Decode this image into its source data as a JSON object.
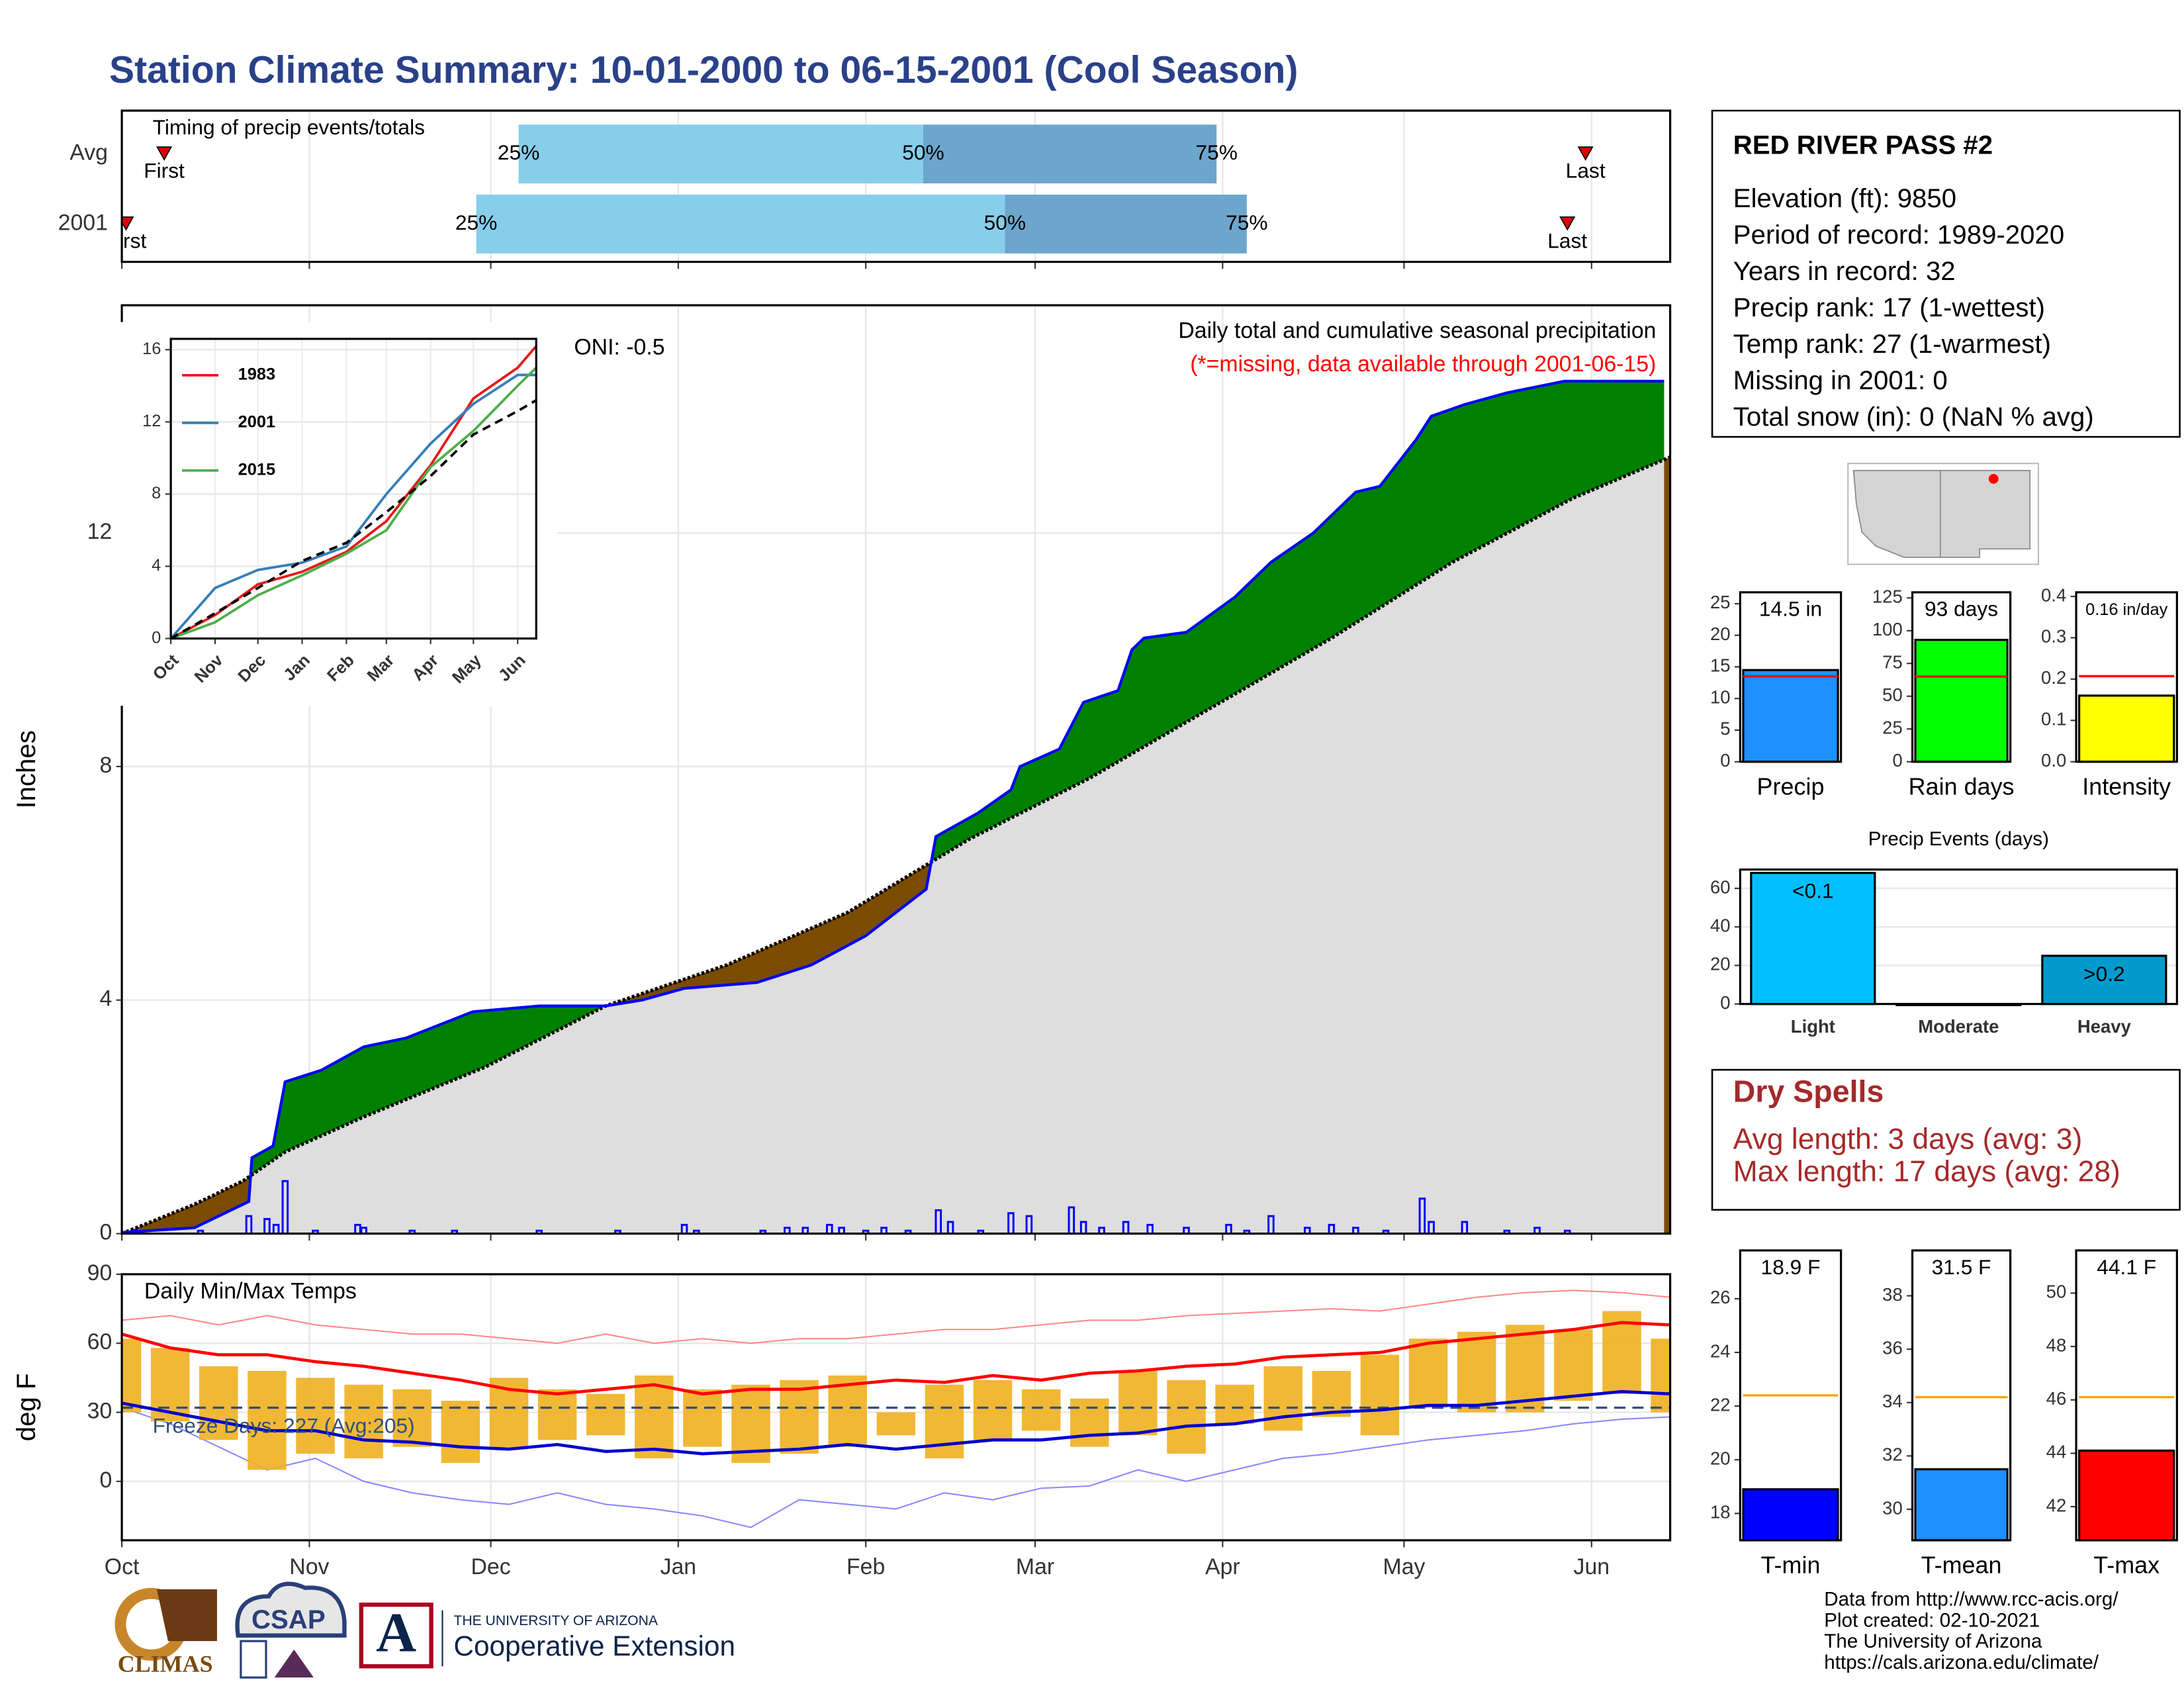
{
  "title": "Station Climate Summary: 10-01-2000 to 06-15-2001 (Cool Season)",
  "chart_data": [
    {
      "type": "timeline",
      "title": "Timing of precip events/totals",
      "categories": [
        "Avg",
        "2001"
      ],
      "xlim": [
        0,
        256
      ],
      "xticks": [
        0,
        31,
        61,
        92,
        123,
        151,
        182,
        212,
        243
      ],
      "grid": true,
      "first": [
        7,
        0.7
      ],
      "q25": [
        65.6,
        58.6
      ],
      "q50": [
        132.5,
        146
      ],
      "q75": [
        181,
        186
      ],
      "last": [
        242,
        239
      ],
      "first_label": "First",
      "last_label": "Last",
      "quartile_labels": [
        "25%",
        "50%",
        "75%"
      ],
      "colors": {
        "early": "#87ceeb",
        "late": "#6ca6cd",
        "marker": "#e00000"
      }
    },
    {
      "type": "area",
      "title": "Daily total and cumulative seasonal precipitation",
      "subtitle": "(*=missing, data available through 2001-06-15)",
      "annotation": "ONI: -0.5",
      "ylabel": "Inches",
      "xlim": [
        0,
        256
      ],
      "xticks": [
        0,
        31,
        61,
        92,
        123,
        151,
        182,
        212,
        243
      ],
      "ylim": [
        0,
        15.9
      ],
      "yticks": [
        0,
        4,
        8,
        12
      ],
      "grid": true,
      "cumulative": {
        "color": "#0000ff",
        "x": [
          0,
          12,
          21,
          21.5,
          25,
          27,
          33,
          40,
          47,
          58,
          69,
          80,
          86,
          93,
          105,
          114,
          123,
          133,
          134.6,
          141.5,
          147,
          148.5,
          155,
          159,
          164.7,
          167,
          169,
          176,
          184,
          190,
          197,
          204,
          208,
          214,
          216.5,
          222,
          229,
          238.5,
          255
        ],
        "values": [
          0.02,
          0.1,
          0.55,
          1.3,
          1.5,
          2.6,
          2.8,
          3.2,
          3.35,
          3.8,
          3.9,
          3.9,
          4.0,
          4.2,
          4.3,
          4.6,
          5.1,
          5.9,
          6.8,
          7.2,
          7.6,
          8.0,
          8.3,
          9.1,
          9.3,
          10.0,
          10.2,
          10.3,
          10.9,
          11.5,
          12.0,
          12.7,
          12.8,
          13.6,
          14.0,
          14.2,
          14.4,
          14.6,
          14.6
        ]
      },
      "average": {
        "color": "#000000",
        "x": [
          0,
          12,
          20,
          27,
          40,
          60,
          80,
          100,
          120,
          140,
          160,
          180,
          200,
          220,
          240,
          256
        ],
        "values": [
          0,
          0.5,
          0.9,
          1.4,
          2.0,
          2.85,
          3.9,
          4.6,
          5.5,
          6.75,
          7.8,
          9.0,
          10.2,
          11.5,
          12.6,
          13.3
        ]
      },
      "daily": {
        "color": "#0000ff",
        "x": [
          2,
          13,
          21,
          24,
          25.5,
          27,
          32,
          39,
          40,
          48,
          55,
          69,
          82,
          93,
          95,
          106,
          110,
          113,
          117,
          119,
          123,
          126,
          130,
          135,
          137,
          142,
          147,
          150,
          157,
          159,
          162,
          166,
          170,
          176,
          183,
          186,
          190,
          196,
          200,
          204,
          209,
          215,
          216.5,
          222,
          229,
          234,
          239
        ],
        "values": [
          0.05,
          0.05,
          0.3,
          0.25,
          0.15,
          0.9,
          0.05,
          0.15,
          0.1,
          0.05,
          0.05,
          0.05,
          0.05,
          0.15,
          0.05,
          0.05,
          0.1,
          0.1,
          0.15,
          0.1,
          0.05,
          0.1,
          0.05,
          0.4,
          0.2,
          0.05,
          0.35,
          0.3,
          0.45,
          0.2,
          0.1,
          0.2,
          0.15,
          0.1,
          0.15,
          0.05,
          0.3,
          0.1,
          0.15,
          0.1,
          0.05,
          0.6,
          0.2,
          0.2,
          0.05,
          0.1,
          0.05
        ]
      },
      "above_color": "#008000",
      "below_color": "#7a4b00",
      "base_color": "#dedede"
    },
    {
      "type": "band",
      "title": "Daily Min/Max Temps",
      "annotation": "Freeze Days: 227 (Avg:205)",
      "ylabel": "deg F",
      "xlim": [
        0,
        256
      ],
      "xticks": [
        {
          "value": 0,
          "label": "Oct"
        },
        {
          "value": 31,
          "label": "Nov"
        },
        {
          "value": 61,
          "label": "Dec"
        },
        {
          "value": 92,
          "label": "Jan"
        },
        {
          "value": 123,
          "label": "Feb"
        },
        {
          "value": 151,
          "label": "Mar"
        },
        {
          "value": 182,
          "label": "Apr"
        },
        {
          "value": 212,
          "label": "May"
        },
        {
          "value": 243,
          "label": "Jun"
        }
      ],
      "ylim": [
        -25.6,
        90
      ],
      "yticks": [
        0,
        30,
        60,
        90
      ],
      "grid": true,
      "reference": 32,
      "x": [
        0,
        8,
        16,
        24,
        32,
        40,
        48,
        56,
        64,
        72,
        80,
        88,
        96,
        104,
        112,
        120,
        128,
        136,
        144,
        152,
        160,
        168,
        176,
        184,
        192,
        200,
        208,
        216,
        224,
        232,
        240,
        248,
        256
      ],
      "daily_max": [
        62,
        58,
        50,
        48,
        45,
        42,
        40,
        35,
        45,
        40,
        38,
        46,
        40,
        42,
        44,
        46,
        30,
        42,
        44,
        40,
        36,
        48,
        44,
        42,
        50,
        48,
        55,
        62,
        65,
        68,
        66,
        74,
        62
      ],
      "daily_min": [
        30,
        26,
        18,
        5,
        12,
        10,
        15,
        8,
        14,
        18,
        20,
        10,
        15,
        8,
        12,
        15,
        20,
        10,
        18,
        22,
        15,
        20,
        12,
        25,
        22,
        28,
        20,
        32,
        30,
        30,
        35,
        38,
        30
      ],
      "mean_max": [
        64,
        58,
        55,
        55,
        52,
        50,
        47,
        44,
        40,
        38,
        40,
        42,
        38,
        40,
        40,
        42,
        44,
        43,
        46,
        44,
        47,
        48,
        50,
        51,
        54,
        55,
        56,
        60,
        62,
        64,
        66,
        69,
        68
      ],
      "mean_min": [
        34,
        30,
        26,
        22,
        22,
        18,
        17,
        15,
        14,
        16,
        13,
        14,
        12,
        13,
        14,
        16,
        14,
        16,
        18,
        18,
        20,
        21,
        24,
        25,
        28,
        30,
        31,
        33,
        33,
        35,
        37,
        39,
        38
      ],
      "record_max": [
        70,
        72,
        68,
        72,
        68,
        66,
        64,
        64,
        62,
        60,
        64,
        60,
        62,
        60,
        62,
        62,
        64,
        66,
        66,
        68,
        70,
        70,
        72,
        73,
        74,
        75,
        74,
        77,
        80,
        82,
        83,
        82,
        80
      ],
      "record_min": [
        32,
        25,
        15,
        5,
        10,
        0,
        -5,
        -8,
        -10,
        -5,
        -10,
        -12,
        -15,
        -20,
        -8,
        -10,
        -12,
        -5,
        -8,
        -3,
        -2,
        5,
        0,
        5,
        10,
        12,
        15,
        18,
        20,
        22,
        25,
        27,
        28
      ],
      "colors": {
        "daily": "#f0b020",
        "mean_max": "#ff0000",
        "mean_min": "#0000cd",
        "record_max": "#ff8a8a",
        "record_min": "#8a8aff",
        "reference": "#30507a"
      }
    },
    {
      "type": "line",
      "xlim": [
        0,
        256
      ],
      "ylim": [
        0,
        16.6
      ],
      "legend": "top-left",
      "xticks": [
        {
          "value": 0,
          "label": "Oct"
        },
        {
          "value": 31,
          "label": "Nov"
        },
        {
          "value": 61,
          "label": "Dec"
        },
        {
          "value": 92,
          "label": "Jan"
        },
        {
          "value": 123,
          "label": "Feb"
        },
        {
          "value": 151,
          "label": "Mar"
        },
        {
          "value": 182,
          "label": "Apr"
        },
        {
          "value": 212,
          "label": "May"
        },
        {
          "value": 243,
          "label": "Jun"
        }
      ],
      "yticks": [
        0,
        4,
        8,
        12,
        16
      ],
      "x": [
        0,
        31,
        61,
        92,
        123,
        151,
        182,
        212,
        243,
        256
      ],
      "series": [
        {
          "name": "1983",
          "color": "#e41a1c",
          "values": [
            0,
            1.3,
            3.0,
            3.7,
            4.8,
            6.5,
            9.6,
            13.3,
            15.0,
            16.2
          ]
        },
        {
          "name": "2001",
          "color": "#377eb8",
          "values": [
            0,
            2.8,
            3.8,
            4.2,
            5.1,
            8.0,
            10.8,
            13.0,
            14.6,
            14.6
          ]
        },
        {
          "name": "2015",
          "color": "#4daf4a",
          "values": [
            0,
            0.9,
            2.4,
            3.5,
            4.7,
            6.0,
            9.5,
            11.5,
            14.0,
            15.0
          ]
        },
        {
          "color": "#000000",
          "dashed": true,
          "values": [
            0,
            1.4,
            2.8,
            4.3,
            5.3,
            7.0,
            9.0,
            11.3,
            12.6,
            13.2
          ]
        }
      ]
    },
    {
      "type": "bar",
      "categories": [
        "Precip"
      ],
      "values": [
        14.5
      ],
      "value_labels": [
        "14.5 in"
      ],
      "color": "#1e90ff",
      "reference": 13.5,
      "reference_color": "#ff0000",
      "ylim": [
        0,
        26.8
      ],
      "yticks": [
        0,
        5,
        10,
        15,
        20,
        25
      ]
    },
    {
      "type": "bar",
      "categories": [
        "Rain days"
      ],
      "values": [
        93
      ],
      "value_labels": [
        "93 days"
      ],
      "color": "#00ff00",
      "reference": 65,
      "reference_color": "#ff0000",
      "ylim": [
        0,
        129.3
      ],
      "yticks": [
        0,
        25,
        50,
        75,
        100,
        125
      ]
    },
    {
      "type": "bar",
      "categories": [
        "Intensity"
      ],
      "values": [
        0.16
      ],
      "value_labels": [
        "0.16 in/day"
      ],
      "color": "#ffff00",
      "reference": 0.207,
      "reference_color": "#ff0000",
      "ylim": [
        0,
        0.41
      ],
      "yticks": [
        {
          "value": 0,
          "label": "0.0"
        },
        0.1,
        0.2,
        0.3,
        0.4
      ]
    },
    {
      "type": "bar",
      "title": "Precip Events (days)",
      "categories": [
        "Light",
        "Moderate",
        "Heavy"
      ],
      "values": [
        68,
        0,
        25
      ],
      "bin_labels": [
        "<0.1",
        null,
        ">0.2"
      ],
      "colors": [
        "#00bfff",
        "#00bfff",
        "#009acd"
      ],
      "ylim": [
        0,
        69.75
      ],
      "yticks": [
        0,
        20,
        40,
        60
      ],
      "grid": true
    },
    {
      "type": "bar",
      "categories": [
        "T-min"
      ],
      "values": [
        18.9
      ],
      "value_labels": [
        "18.9 F"
      ],
      "color": "#0000ff",
      "reference": 22.4,
      "reference_color": "#ffa500",
      "ylim": [
        17.0,
        27.8
      ],
      "yticks": [
        18,
        20,
        22,
        24,
        26
      ]
    },
    {
      "type": "bar",
      "categories": [
        "T-mean"
      ],
      "values": [
        31.5
      ],
      "value_labels": [
        "31.5 F"
      ],
      "color": "#1e90ff",
      "reference": 34.2,
      "reference_color": "#ffa500",
      "ylim": [
        28.84,
        39.7
      ],
      "yticks": [
        30,
        32,
        34,
        36,
        38
      ]
    },
    {
      "type": "bar",
      "categories": [
        "T-max"
      ],
      "values": [
        44.1
      ],
      "value_labels": [
        "44.1 F"
      ],
      "color": "#ff0000",
      "reference": 46.1,
      "reference_color": "#ffa500",
      "ylim": [
        40.74,
        51.6
      ],
      "yticks": [
        42,
        44,
        46,
        48,
        50
      ]
    }
  ],
  "station_box": {
    "title": "RED RIVER PASS #2",
    "lines": [
      "Elevation (ft): 9850",
      "Period of record: 1989-2020",
      "Years in record: 32",
      "Precip rank: 17 (1-wettest)",
      "Temp rank: 27 (1-warmest)",
      "Missing in 2001: 0",
      "Total snow (in): 0 (NaN % avg)"
    ]
  },
  "dry_spells": {
    "title": "Dry Spells",
    "lines": [
      "Avg length: 3 days (avg: 3)",
      "Max length: 17 days (avg: 28)"
    ]
  },
  "logos": {
    "climas": "CLIMAS",
    "csap": "CSAP",
    "arizona_mark": "A",
    "university": "THE UNIVERSITY OF ARIZONA",
    "extension": "Cooperative Extension"
  },
  "credits": [
    "Data from http://www.rcc-acis.org/",
    "Plot created: 02-10-2021",
    "The University of Arizona",
    "https://cals.arizona.edu/climate/"
  ]
}
